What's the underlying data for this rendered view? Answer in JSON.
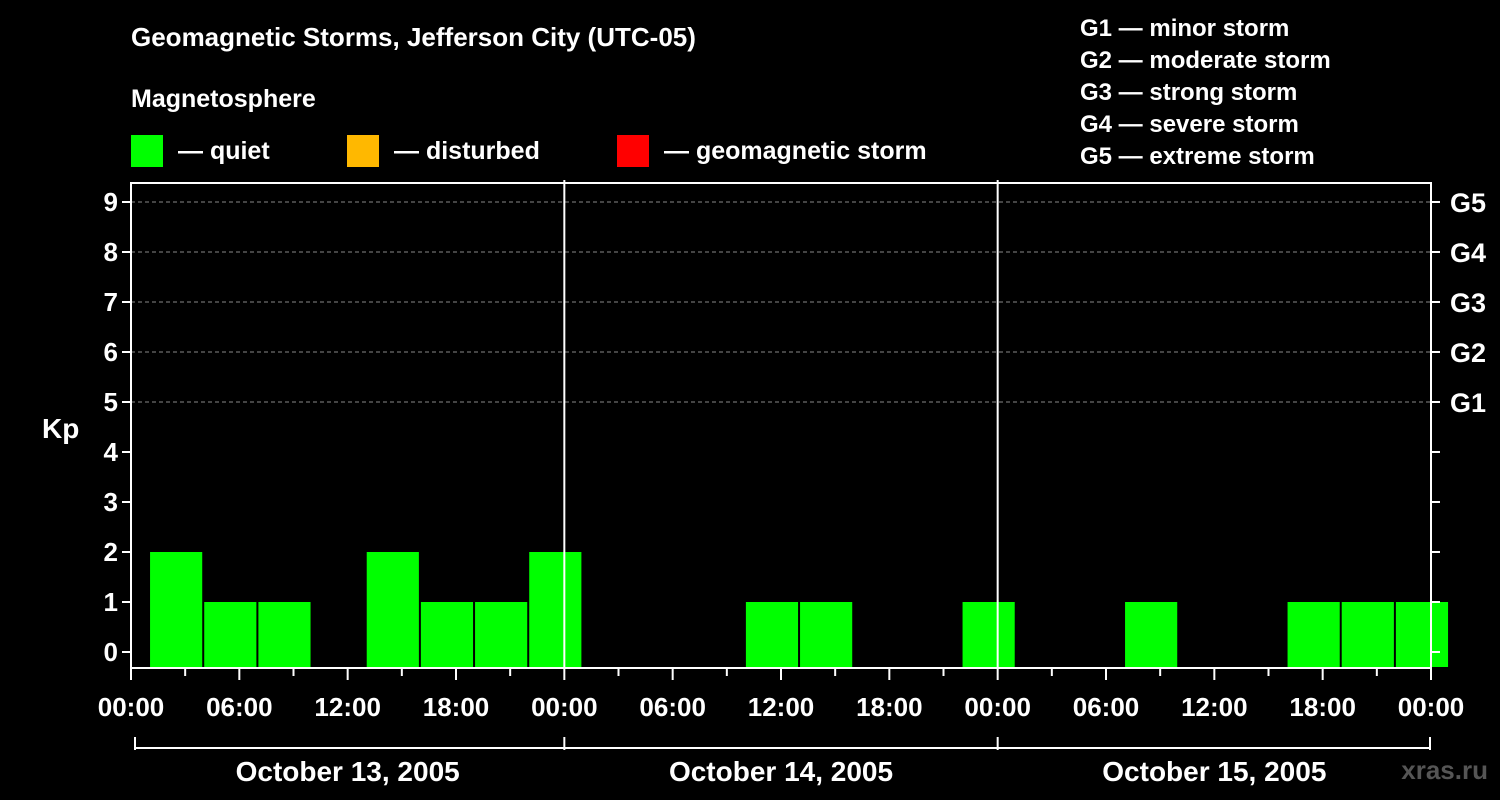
{
  "title": "Geomagnetic Storms, Jefferson City (UTC-05)",
  "legend": {
    "heading": "Magnetosphere",
    "items": [
      {
        "label": "— quiet",
        "color": "#00ff00"
      },
      {
        "label": "— disturbed",
        "color": "#ffb800"
      },
      {
        "label": "— geomagnetic storm",
        "color": "#ff0000"
      }
    ]
  },
  "storm_scale": [
    "G1 — minor storm",
    "G2 — moderate storm",
    "G3 — strong storm",
    "G4 — severe storm",
    "G5 — extreme storm"
  ],
  "watermark": "xras.ru",
  "colors": {
    "background": "#000000",
    "quiet": "#00ff00",
    "axis": "#ffffff",
    "grid": "#888888"
  },
  "chart_data": {
    "type": "bar",
    "ylabel": "Kp",
    "ylim": [
      0,
      9
    ],
    "yticks": [
      "0",
      "1",
      "2",
      "3",
      "4",
      "5",
      "6",
      "7",
      "8",
      "9"
    ],
    "g_ticks": [
      {
        "label": "G1",
        "kp": 5
      },
      {
        "label": "G2",
        "kp": 6
      },
      {
        "label": "G3",
        "kp": 7
      },
      {
        "label": "G4",
        "kp": 8
      },
      {
        "label": "G5",
        "kp": 9
      }
    ],
    "x_range_hours": [
      0,
      72
    ],
    "x_tick_labels": [
      "00:00",
      "06:00",
      "12:00",
      "18:00",
      "00:00",
      "06:00",
      "12:00",
      "18:00",
      "00:00",
      "06:00",
      "12:00",
      "18:00",
      "00:00"
    ],
    "dates": [
      "October 13, 2005",
      "October 14, 2005",
      "October 15, 2005"
    ],
    "grid": "dashed horizontal at Kp 5–9",
    "bars": [
      {
        "start": "October 13 01:00",
        "kp": 2
      },
      {
        "start": "October 13 04:00",
        "kp": 1
      },
      {
        "start": "October 13 07:00",
        "kp": 1
      },
      {
        "start": "October 13 10:00",
        "kp": 0
      },
      {
        "start": "October 13 13:00",
        "kp": 2
      },
      {
        "start": "October 13 16:00",
        "kp": 1
      },
      {
        "start": "October 13 19:00",
        "kp": 1
      },
      {
        "start": "October 13 22:00",
        "kp": 2
      },
      {
        "start": "October 14 01:00",
        "kp": 0
      },
      {
        "start": "October 14 04:00",
        "kp": 0
      },
      {
        "start": "October 14 07:00",
        "kp": 0
      },
      {
        "start": "October 14 10:00",
        "kp": 1
      },
      {
        "start": "October 14 13:00",
        "kp": 1
      },
      {
        "start": "October 14 16:00",
        "kp": 0
      },
      {
        "start": "October 14 19:00",
        "kp": 0
      },
      {
        "start": "October 14 22:00",
        "kp": 1
      },
      {
        "start": "October 15 01:00",
        "kp": 0
      },
      {
        "start": "October 15 04:00",
        "kp": 0
      },
      {
        "start": "October 15 07:00",
        "kp": 1
      },
      {
        "start": "October 15 10:00",
        "kp": 0
      },
      {
        "start": "October 15 13:00",
        "kp": 0
      },
      {
        "start": "October 15 16:00",
        "kp": 1
      },
      {
        "start": "October 15 19:00",
        "kp": 1
      },
      {
        "start": "October 15 22:00",
        "kp": 1
      }
    ]
  }
}
